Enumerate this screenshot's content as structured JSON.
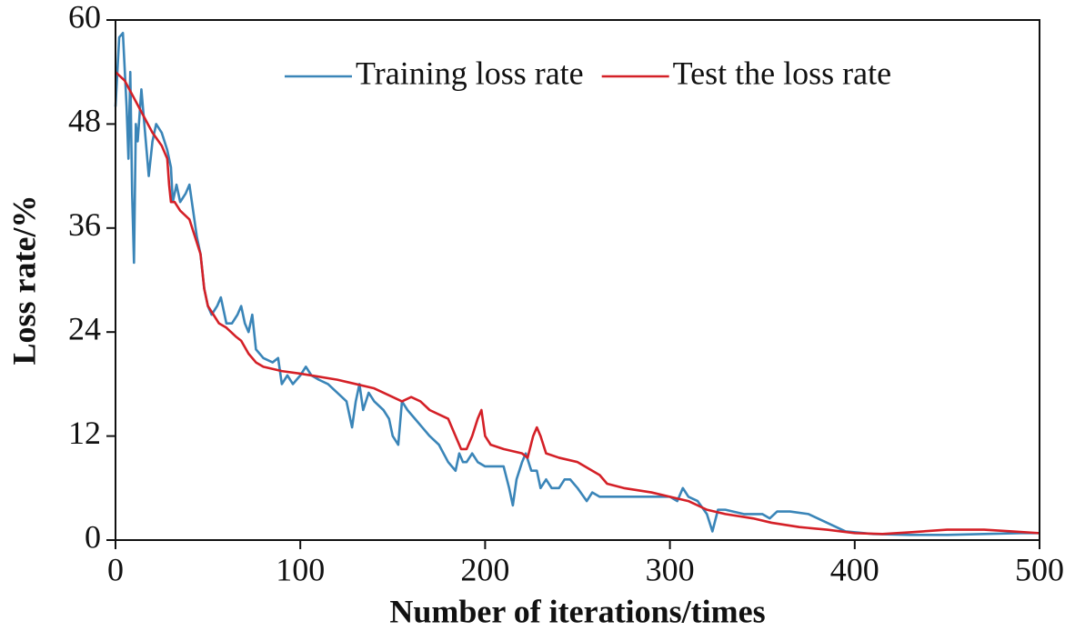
{
  "chart_data": {
    "type": "line",
    "xlabel": "Number of iterations/times",
    "ylabel": "Loss rate/%",
    "xlim": [
      0,
      500
    ],
    "xticks": [
      0,
      100,
      200,
      300,
      400,
      500
    ],
    "ylim": [
      0,
      60
    ],
    "yticks": [
      0,
      12,
      24,
      36,
      48,
      60
    ],
    "legend": "upper right",
    "series": [
      {
        "name": "Training loss rate",
        "color": "#3a85b8",
        "x": [
          0,
          2,
          4,
          6,
          7,
          8,
          9,
          10,
          11,
          12,
          14,
          16,
          18,
          20,
          22,
          25,
          28,
          30,
          31,
          33,
          35,
          38,
          40,
          42,
          44,
          46,
          48,
          50,
          52,
          55,
          57,
          60,
          63,
          66,
          68,
          70,
          72,
          74,
          76,
          80,
          85,
          88,
          90,
          93,
          96,
          100,
          103,
          106,
          110,
          115,
          120,
          125,
          128,
          130,
          132,
          134,
          137,
          140,
          145,
          148,
          150,
          153,
          155,
          158,
          162,
          166,
          170,
          175,
          180,
          184,
          186,
          188,
          190,
          193,
          196,
          200,
          205,
          210,
          213,
          215,
          217,
          220,
          222,
          225,
          228,
          230,
          233,
          236,
          240,
          243,
          246,
          250,
          255,
          258,
          262,
          270,
          280,
          290,
          300,
          304,
          307,
          310,
          315,
          320,
          323,
          326,
          330,
          340,
          350,
          354,
          358,
          365,
          375,
          385,
          395,
          410,
          430,
          450,
          470,
          490,
          500
        ],
        "values": [
          50,
          58,
          58.5,
          50,
          44,
          54,
          40,
          32,
          48,
          46,
          52,
          47,
          42,
          46,
          48,
          47,
          45,
          43,
          39,
          41,
          39,
          40,
          41,
          38,
          35,
          33,
          29,
          27,
          26,
          27,
          28,
          25,
          25,
          26,
          27,
          25,
          24,
          26,
          22,
          21,
          20.5,
          21,
          18,
          19,
          18,
          19,
          20,
          19,
          18.5,
          18,
          17,
          16,
          13,
          16,
          18,
          15,
          17,
          16,
          15,
          14,
          12,
          11,
          16,
          15,
          14,
          13,
          12,
          11,
          9,
          8,
          10,
          9,
          9,
          10,
          9,
          8.5,
          8.5,
          8.5,
          6,
          4,
          7,
          9,
          10,
          8,
          8,
          6,
          7,
          6,
          6,
          7,
          7,
          6,
          4.5,
          5.5,
          5,
          5,
          5,
          5,
          5,
          4.5,
          6,
          5,
          4.5,
          3,
          1,
          3.5,
          3.5,
          3,
          3,
          2.5,
          3.3,
          3.3,
          3,
          2,
          1,
          0.7,
          0.6,
          0.6,
          0.7,
          0.8,
          0.8
        ]
      },
      {
        "name": "Test the loss rate",
        "color": "#d42027",
        "x": [
          0,
          5,
          10,
          15,
          20,
          25,
          28,
          29,
          30,
          32,
          35,
          40,
          43,
          46,
          48,
          50,
          53,
          56,
          60,
          65,
          68,
          72,
          76,
          80,
          90,
          100,
          120,
          140,
          150,
          155,
          160,
          165,
          170,
          175,
          180,
          184,
          187,
          190,
          193,
          196,
          198,
          200,
          203,
          210,
          220,
          223,
          226,
          228,
          230,
          233,
          240,
          250,
          258,
          262,
          266,
          275,
          290,
          300,
          310,
          320,
          330,
          345,
          355,
          370,
          385,
          400,
          415,
          430,
          450,
          470,
          485,
          500
        ],
        "values": [
          54,
          53,
          51,
          49,
          47,
          45.5,
          44,
          41,
          39,
          39,
          38,
          37,
          35,
          33,
          29,
          27,
          26,
          25,
          24.5,
          23.5,
          23,
          21.5,
          20.5,
          20,
          19.5,
          19.2,
          18.5,
          17.5,
          16.5,
          16,
          16.5,
          16,
          15,
          14.5,
          14,
          12,
          10.5,
          10.5,
          12,
          14,
          15,
          12,
          11,
          10.5,
          10,
          9.5,
          12,
          13,
          12,
          10,
          9.5,
          9,
          8,
          7.5,
          6.5,
          6,
          5.5,
          5,
          4.5,
          3.5,
          3,
          2.5,
          2,
          1.5,
          1.2,
          0.8,
          0.7,
          0.9,
          1.2,
          1.2,
          1,
          0.8
        ]
      }
    ]
  }
}
